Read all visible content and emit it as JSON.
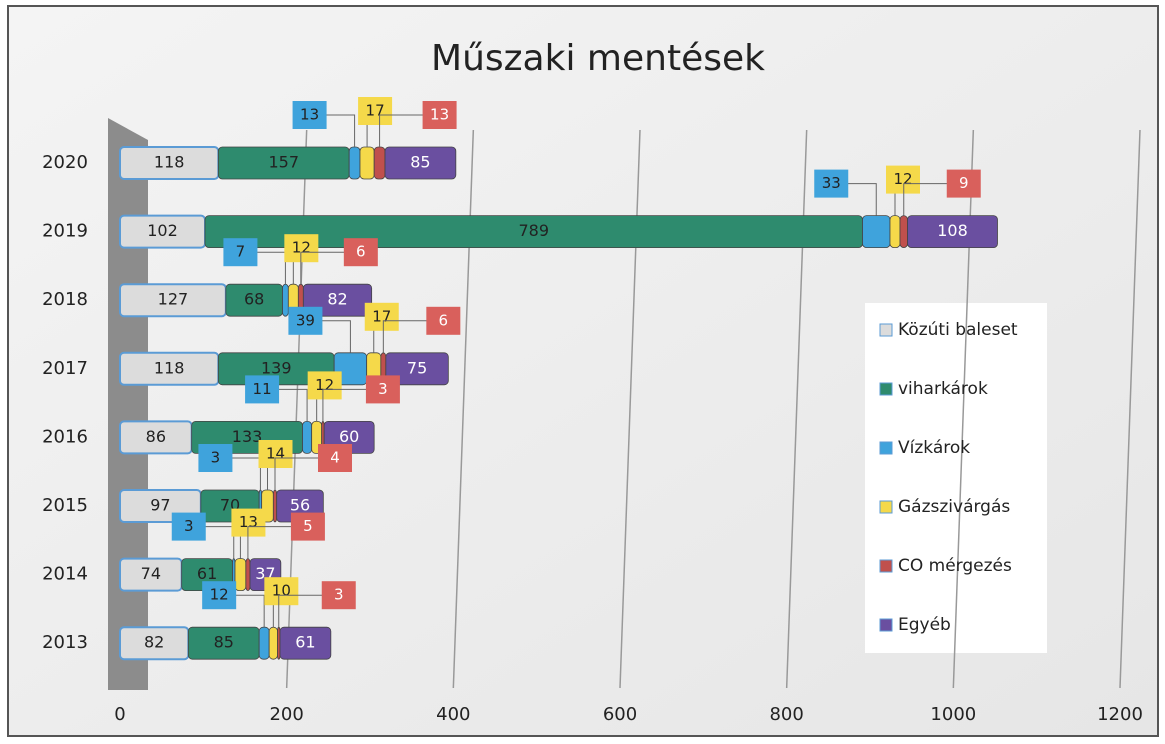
{
  "chart_data": {
    "type": "bar",
    "orientation": "horizontal",
    "stacked": true,
    "title": "Műszaki mentések",
    "categories": [
      "2020",
      "2019",
      "2018",
      "2017",
      "2016",
      "2015",
      "2014",
      "2013"
    ],
    "series": [
      {
        "name": "Közúti baleset",
        "color": "#dcdcdc",
        "values": [
          118,
          102,
          127,
          118,
          86,
          97,
          74,
          82
        ]
      },
      {
        "name": "viharkárok",
        "color": "#2e8b6e",
        "values": [
          157,
          789,
          68,
          139,
          133,
          70,
          61,
          85
        ]
      },
      {
        "name": "Vízkárok",
        "color": "#3fa3dc",
        "values": [
          13,
          33,
          7,
          39,
          11,
          3,
          3,
          12
        ]
      },
      {
        "name": "Gázszivárgás",
        "color": "#f5d94a",
        "values": [
          17,
          12,
          12,
          17,
          12,
          14,
          13,
          10
        ]
      },
      {
        "name": "CO mérgezés",
        "color": "#c0504d",
        "values": [
          13,
          9,
          6,
          6,
          3,
          4,
          5,
          3
        ]
      },
      {
        "name": "Egyéb",
        "color": "#6a4fa0",
        "values": [
          85,
          108,
          82,
          75,
          60,
          56,
          37,
          61
        ]
      }
    ],
    "xlim": [
      0,
      1200
    ],
    "xticks": [
      0,
      200,
      400,
      600,
      800,
      1000,
      1200
    ],
    "grid": true,
    "legend": "right"
  }
}
